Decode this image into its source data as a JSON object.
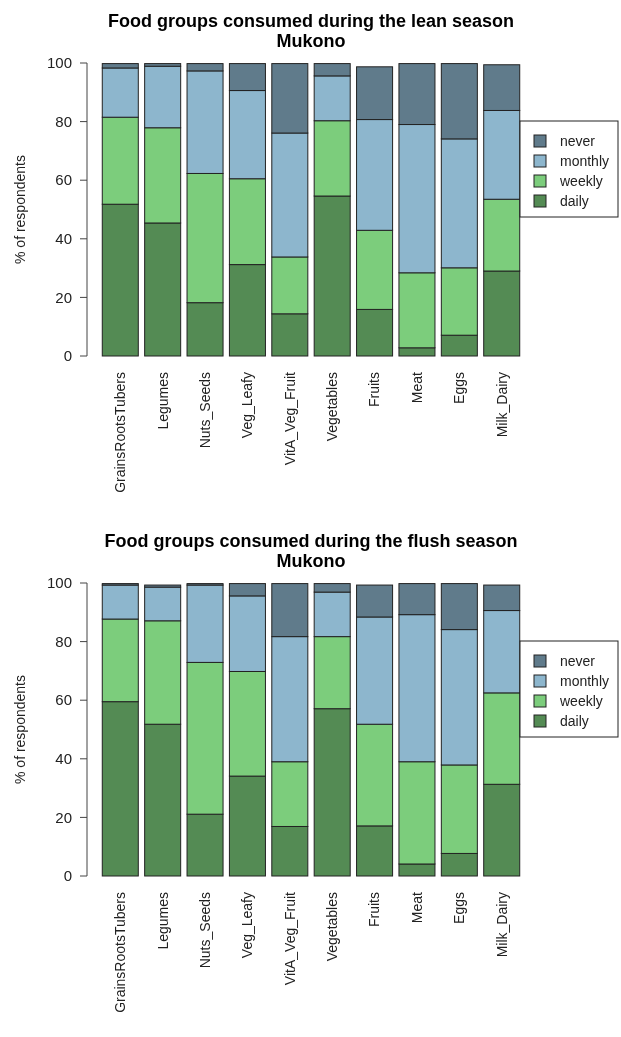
{
  "chart_data": [
    {
      "type": "bar",
      "stacked": true,
      "title": "Food groups consumed during the lean season\nMukono",
      "ylabel": "% of respondents",
      "categories": [
        "GrainsRootsTubers",
        "Legumes",
        "Nuts_Seeds",
        "Veg_Leafy",
        "VitA_Veg_Fruit",
        "Vegetables",
        "Fruits",
        "Meat",
        "Eggs",
        "Milk_Dairy"
      ],
      "ylim": [
        0,
        100
      ],
      "yticks": [
        0,
        20,
        40,
        60,
        80,
        100
      ],
      "legend": "right",
      "grid": false,
      "series": [
        {
          "name": "daily",
          "color": "#548b54",
          "values": [
            51.8,
            45.4,
            18.2,
            31.2,
            14.4,
            54.6,
            15.9,
            2.8,
            7.1,
            29.0
          ]
        },
        {
          "name": "weekly",
          "color": "#7ccd7c",
          "values": [
            29.7,
            32.5,
            44.1,
            29.3,
            19.4,
            25.7,
            27.0,
            25.6,
            23.0,
            24.5
          ]
        },
        {
          "name": "monthly",
          "color": "#8db6cd",
          "values": [
            16.8,
            21.0,
            35.0,
            30.1,
            42.3,
            15.3,
            37.8,
            50.6,
            44.0,
            30.3
          ]
        },
        {
          "name": "never",
          "color": "#607b8b",
          "values": [
            1.5,
            0.9,
            2.5,
            9.2,
            23.7,
            4.2,
            18.0,
            20.8,
            25.7,
            15.6
          ]
        }
      ]
    },
    {
      "type": "bar",
      "stacked": true,
      "title": "Food groups consumed during the flush season\nMukono",
      "ylabel": "% of respondents",
      "categories": [
        "GrainsRootsTubers",
        "Legumes",
        "Nuts_Seeds",
        "Veg_Leafy",
        "VitA_Veg_Fruit",
        "Vegetables",
        "Fruits",
        "Meat",
        "Eggs",
        "Milk_Dairy"
      ],
      "ylim": [
        0,
        100
      ],
      "yticks": [
        0,
        20,
        40,
        60,
        80,
        100
      ],
      "legend": "right",
      "grid": false,
      "series": [
        {
          "name": "daily",
          "color": "#548b54",
          "values": [
            59.5,
            51.8,
            21.1,
            34.1,
            16.9,
            57.1,
            17.1,
            4.1,
            7.7,
            31.3
          ]
        },
        {
          "name": "weekly",
          "color": "#7ccd7c",
          "values": [
            28.2,
            35.3,
            51.8,
            35.7,
            22.1,
            24.6,
            34.7,
            34.9,
            30.2,
            31.2
          ]
        },
        {
          "name": "monthly",
          "color": "#8db6cd",
          "values": [
            11.6,
            11.5,
            26.4,
            25.8,
            42.7,
            15.2,
            36.6,
            50.2,
            46.2,
            28.1
          ]
        },
        {
          "name": "never",
          "color": "#607b8b",
          "values": [
            0.5,
            0.7,
            0.5,
            4.2,
            18.1,
            2.9,
            10.9,
            10.6,
            15.7,
            8.7
          ]
        }
      ]
    }
  ]
}
